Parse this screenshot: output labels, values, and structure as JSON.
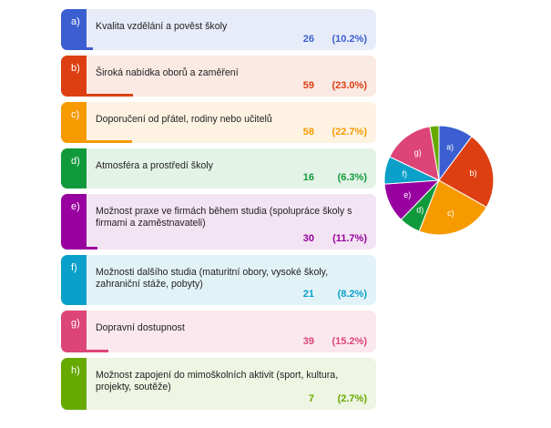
{
  "chart_data": {
    "type": "pie",
    "title": "",
    "categories": [
      {
        "letter": "a)",
        "label": "Kvalita vzdělání a pověst školy",
        "count": 26,
        "percent": "(10.2%)",
        "value": 10.2,
        "color": "#3b5fd1",
        "bg": "#e7ecf8"
      },
      {
        "letter": "b)",
        "label": "Široká nabídka oborů a zaměření",
        "count": 59,
        "percent": "(23.0%)",
        "value": 23.0,
        "color": "#dd3f12",
        "bg": "#fbe9e4"
      },
      {
        "letter": "c)",
        "label": "Doporučení od přátel, rodiny nebo učitelů",
        "count": 58,
        "percent": "(22.7%)",
        "value": 22.7,
        "color": "#f79a00",
        "bg": "#fef3e3"
      },
      {
        "letter": "d)",
        "label": "Atmosféra a prostředí školy",
        "count": 16,
        "percent": "(6.3%)",
        "value": 6.3,
        "color": "#119a3b",
        "bg": "#e4f3e7"
      },
      {
        "letter": "e)",
        "label": "Možnost praxe ve firmách během studia (spolupráce školy s firmami a zaměstnavateli)",
        "count": 30,
        "percent": "(11.7%)",
        "value": 11.7,
        "color": "#98009f",
        "bg": "#f3e4f3"
      },
      {
        "letter": "f)",
        "label": "Možnosti dalšího studia (maturitní obory, vysoké školy, zahraniční stáže, pobyty)",
        "count": 21,
        "percent": "(8.2%)",
        "value": 8.2,
        "color": "#0aa0c9",
        "bg": "#e2f3f8"
      },
      {
        "letter": "g)",
        "label": "Dopravní dostupnost",
        "count": 39,
        "percent": "(15.2%)",
        "value": 15.2,
        "color": "#dd4477",
        "bg": "#fbe8ee"
      },
      {
        "letter": "h)",
        "label": "Možnost zapojení do mimoškolních aktivit (sport, kultura, projekty, soutěže)",
        "count": 7,
        "percent": "(2.7%)",
        "value": 2.7,
        "color": "#66aa00",
        "bg": "#eef5e3"
      }
    ],
    "legend": "none"
  }
}
